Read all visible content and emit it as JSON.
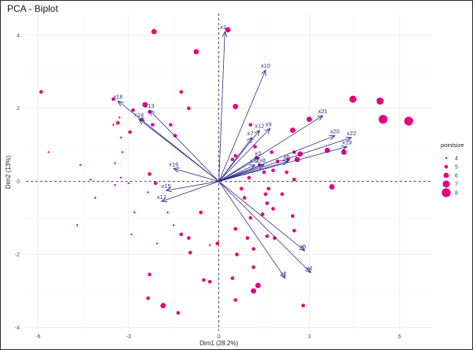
{
  "chart_data": {
    "type": "scatter",
    "title": "PCA - Biplot",
    "xlabel": "Dim1 (28.2%)",
    "ylabel": "Dim2 (13%)",
    "xlim": [
      -6.4,
      7.1
    ],
    "ylim": [
      -4.1,
      4.6
    ],
    "x_ticks": [
      -6,
      -3,
      0,
      3,
      6
    ],
    "y_ticks": [
      -4,
      -2,
      0,
      2,
      4
    ],
    "grid": true,
    "point_color": "#e6007e",
    "arrow_color": "#2e2e8a",
    "legend": {
      "title": "pointsize",
      "position": "right",
      "entries": [
        "4",
        "5",
        "6",
        "7",
        "8"
      ]
    },
    "points": [
      {
        "x": -5.9,
        "y": 2.45,
        "size": 5
      },
      {
        "x": -5.65,
        "y": 0.8,
        "size": 4
      },
      {
        "x": -4.6,
        "y": 0.45,
        "size": 4
      },
      {
        "x": -4.25,
        "y": 0.05,
        "size": 4
      },
      {
        "x": -4.7,
        "y": -1.2,
        "size": 4
      },
      {
        "x": -4.1,
        "y": -0.45,
        "size": 4
      },
      {
        "x": -3.5,
        "y": 2.25,
        "size": 5
      },
      {
        "x": -3.3,
        "y": 1.75,
        "size": 4
      },
      {
        "x": -3.35,
        "y": 1.6,
        "size": 5
      },
      {
        "x": -3.5,
        "y": 1.55,
        "size": 4
      },
      {
        "x": -3.25,
        "y": 1.2,
        "size": 4
      },
      {
        "x": -3.2,
        "y": 0.8,
        "size": 4
      },
      {
        "x": -3.45,
        "y": 0.5,
        "size": 4
      },
      {
        "x": -3.25,
        "y": 0.1,
        "size": 4
      },
      {
        "x": -3.0,
        "y": -0.05,
        "size": 4
      },
      {
        "x": -3.45,
        "y": -0.1,
        "size": 4
      },
      {
        "x": -2.85,
        "y": 1.95,
        "size": 5
      },
      {
        "x": -2.45,
        "y": 2.1,
        "size": 6
      },
      {
        "x": -2.3,
        "y": 1.9,
        "size": 5
      },
      {
        "x": -2.55,
        "y": 1.7,
        "size": 5
      },
      {
        "x": -2.2,
        "y": 1.55,
        "size": 5
      },
      {
        "x": -1.6,
        "y": 1.55,
        "size": 5
      },
      {
        "x": -1.45,
        "y": 1.25,
        "size": 5
      },
      {
        "x": -2.95,
        "y": 1.35,
        "size": 5
      },
      {
        "x": -2.15,
        "y": 4.1,
        "size": 6
      },
      {
        "x": -0.75,
        "y": 3.55,
        "size": 6
      },
      {
        "x": -1.25,
        "y": 2.45,
        "size": 5
      },
      {
        "x": -1.0,
        "y": 2.0,
        "size": 5
      },
      {
        "x": -2.3,
        "y": 0.2,
        "size": 5
      },
      {
        "x": -2.1,
        "y": -0.05,
        "size": 5
      },
      {
        "x": -2.35,
        "y": -0.3,
        "size": 4
      },
      {
        "x": -2.8,
        "y": -0.85,
        "size": 4
      },
      {
        "x": -2.9,
        "y": -1.45,
        "size": 4
      },
      {
        "x": -2.05,
        "y": -1.7,
        "size": 4
      },
      {
        "x": -2.3,
        "y": -2.55,
        "size": 5
      },
      {
        "x": -2.35,
        "y": -3.2,
        "size": 5
      },
      {
        "x": -1.7,
        "y": -0.85,
        "size": 4
      },
      {
        "x": -1.5,
        "y": -1.2,
        "size": 4
      },
      {
        "x": -1.25,
        "y": -1.45,
        "size": 5
      },
      {
        "x": -1.0,
        "y": -1.55,
        "size": 5
      },
      {
        "x": -0.95,
        "y": -1.95,
        "size": 5
      },
      {
        "x": -1.85,
        "y": -3.4,
        "size": 6
      },
      {
        "x": -1.35,
        "y": -3.6,
        "size": 5
      },
      {
        "x": -0.5,
        "y": -2.7,
        "size": 5
      },
      {
        "x": -0.3,
        "y": -2.75,
        "size": 5
      },
      {
        "x": -0.3,
        "y": -1.75,
        "size": 4
      },
      {
        "x": -0.6,
        "y": -0.85,
        "size": 5
      },
      {
        "x": -0.05,
        "y": -1.7,
        "size": 5
      },
      {
        "x": 0.45,
        "y": -2.65,
        "size": 5
      },
      {
        "x": 0.6,
        "y": -2.0,
        "size": 5
      },
      {
        "x": 0.55,
        "y": -1.3,
        "size": 5
      },
      {
        "x": 0.95,
        "y": -1.55,
        "size": 5
      },
      {
        "x": 1.15,
        "y": -1.85,
        "size": 5
      },
      {
        "x": 1.15,
        "y": -2.35,
        "size": 5
      },
      {
        "x": 1.3,
        "y": -2.85,
        "size": 6
      },
      {
        "x": 1.05,
        "y": -1.0,
        "size": 5
      },
      {
        "x": 1.45,
        "y": -0.9,
        "size": 5
      },
      {
        "x": 1.6,
        "y": -0.6,
        "size": 5
      },
      {
        "x": 1.8,
        "y": -0.75,
        "size": 5
      },
      {
        "x": 1.65,
        "y": -0.2,
        "size": 5
      },
      {
        "x": 1.6,
        "y": -1.5,
        "size": 5
      },
      {
        "x": 1.85,
        "y": -1.55,
        "size": 5
      },
      {
        "x": 2.1,
        "y": -0.35,
        "size": 5
      },
      {
        "x": 1.55,
        "y": -0.35,
        "size": 5
      },
      {
        "x": 0.85,
        "y": -0.45,
        "size": 5
      },
      {
        "x": 2.45,
        "y": -0.95,
        "size": 5
      },
      {
        "x": 2.5,
        "y": -1.35,
        "size": 5
      },
      {
        "x": 1.0,
        "y": 0.1,
        "size": 5
      },
      {
        "x": 0.45,
        "y": 0.6,
        "size": 5
      },
      {
        "x": 1.25,
        "y": 0.65,
        "size": 5
      },
      {
        "x": 1.2,
        "y": 0.95,
        "size": 5
      },
      {
        "x": 1.35,
        "y": 0.45,
        "size": 5
      },
      {
        "x": 1.95,
        "y": 0.55,
        "size": 5
      },
      {
        "x": 2.3,
        "y": 0.6,
        "size": 5
      },
      {
        "x": 2.25,
        "y": 0.25,
        "size": 5
      },
      {
        "x": 2.5,
        "y": 0.8,
        "size": 5
      },
      {
        "x": 2.5,
        "y": 0.05,
        "size": 5
      },
      {
        "x": 2.6,
        "y": 0.6,
        "size": 6
      },
      {
        "x": 2.45,
        "y": 1.4,
        "size": 6
      },
      {
        "x": 2.7,
        "y": 0.75,
        "size": 6
      },
      {
        "x": 3.0,
        "y": 1.7,
        "size": 6
      },
      {
        "x": 3.6,
        "y": 0.85,
        "size": 6
      },
      {
        "x": 3.75,
        "y": -0.15,
        "size": 6
      },
      {
        "x": 4.15,
        "y": 0.8,
        "size": 6
      },
      {
        "x": 4.45,
        "y": 2.25,
        "size": 7
      },
      {
        "x": 5.35,
        "y": 2.2,
        "size": 7
      },
      {
        "x": 5.45,
        "y": 1.7,
        "size": 8
      },
      {
        "x": 6.3,
        "y": 1.65,
        "size": 8
      },
      {
        "x": 0.3,
        "y": 4.15,
        "size": 6
      },
      {
        "x": 0.55,
        "y": 0.7,
        "size": 5
      },
      {
        "x": 0.55,
        "y": 2.05,
        "size": 6
      },
      {
        "x": 1.75,
        "y": 0.8,
        "size": 5
      },
      {
        "x": 1.05,
        "y": 1.55,
        "size": 5
      },
      {
        "x": 1.5,
        "y": 0.25,
        "size": 5
      },
      {
        "x": 1.8,
        "y": 0.3,
        "size": 5
      },
      {
        "x": 0.75,
        "y": -0.2,
        "size": 5
      },
      {
        "x": 1.15,
        "y": -3.0,
        "size": 6
      },
      {
        "x": 0.55,
        "y": -3.25,
        "size": 5
      },
      {
        "x": 2.8,
        "y": -3.4,
        "size": 5
      }
    ],
    "loadings": [
      {
        "name": "x1",
        "x": 0.2,
        "y": 4.1
      },
      {
        "name": "x10",
        "x": 1.55,
        "y": 3.05
      },
      {
        "name": "x18",
        "x": -3.35,
        "y": 2.2
      },
      {
        "name": "x13",
        "x": -2.3,
        "y": 1.95
      },
      {
        "name": "x14",
        "x": -2.65,
        "y": 1.7
      },
      {
        "name": "x12",
        "x": 1.35,
        "y": 1.4
      },
      {
        "name": "x9",
        "x": 1.7,
        "y": 1.45
      },
      {
        "name": "x7",
        "x": 1.1,
        "y": 1.2
      },
      {
        "name": "x21",
        "x": 3.45,
        "y": 1.8
      },
      {
        "name": "x20",
        "x": 3.85,
        "y": 1.25
      },
      {
        "name": "x22",
        "x": 4.4,
        "y": 1.2
      },
      {
        "name": "x19",
        "x": 4.25,
        "y": 0.95
      },
      {
        "name": "x3",
        "x": 1.35,
        "y": 0.65
      },
      {
        "name": "x11",
        "x": 1.2,
        "y": 0.45
      },
      {
        "name": "x6",
        "x": 2.3,
        "y": 0.55
      },
      {
        "name": "x8",
        "x": 1.5,
        "y": 0.45
      },
      {
        "name": "x16",
        "x": -1.5,
        "y": 0.35
      },
      {
        "name": "x15",
        "x": -1.75,
        "y": -0.25
      },
      {
        "name": "x17",
        "x": -1.9,
        "y": -0.55
      },
      {
        "name": "x5",
        "x": 2.85,
        "y": -1.9
      },
      {
        "name": "x4",
        "x": 3.05,
        "y": -2.5
      },
      {
        "name": "x2",
        "x": 2.2,
        "y": -2.65
      }
    ]
  }
}
